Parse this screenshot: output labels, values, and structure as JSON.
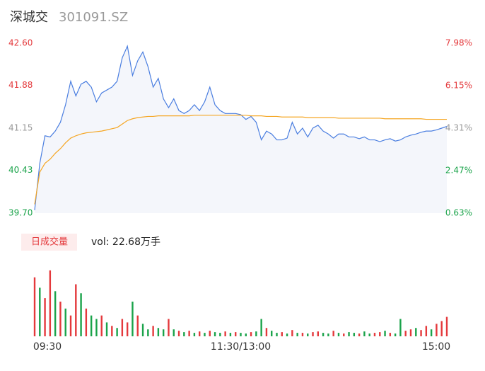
{
  "header": {
    "name": "深城交",
    "code": "301091.SZ"
  },
  "chart_data": [
    {
      "type": "line",
      "x": [
        0,
        1,
        2,
        3,
        4,
        5,
        6,
        7,
        8,
        9,
        10,
        11,
        12,
        13,
        14,
        15,
        16,
        17,
        18,
        19,
        20,
        21,
        22,
        23,
        24,
        25,
        26,
        27,
        28,
        29,
        30,
        31,
        32,
        33,
        34,
        35,
        36,
        37,
        38,
        39,
        40,
        41,
        42,
        43,
        44,
        45,
        46,
        47,
        48,
        49,
        50,
        51,
        52,
        53,
        54,
        55,
        56,
        57,
        58,
        59,
        60,
        61,
        62,
        63,
        64,
        65,
        66,
        67,
        68,
        69,
        70,
        71,
        72,
        73,
        74,
        75,
        76,
        77,
        78,
        79,
        80
      ],
      "series": [
        {
          "color": "#4a7ee0",
          "values": [
            39.75,
            40.55,
            41.02,
            41.0,
            41.1,
            41.25,
            41.55,
            41.95,
            41.7,
            41.9,
            41.95,
            41.85,
            41.6,
            41.75,
            41.8,
            41.85,
            41.95,
            42.35,
            42.55,
            42.05,
            42.3,
            42.45,
            42.2,
            41.85,
            42.0,
            41.65,
            41.5,
            41.65,
            41.45,
            41.4,
            41.45,
            41.55,
            41.45,
            41.6,
            41.85,
            41.55,
            41.45,
            41.4,
            41.4,
            41.4,
            41.38,
            41.3,
            41.35,
            41.25,
            40.95,
            41.1,
            41.05,
            40.95,
            40.95,
            40.98,
            41.25,
            41.05,
            41.15,
            41.0,
            41.15,
            41.2,
            41.1,
            41.05,
            40.98,
            41.05,
            41.05,
            41.0,
            41.0,
            40.97,
            41.0,
            40.95,
            40.95,
            40.92,
            40.95,
            40.97,
            40.93,
            40.95,
            41.0,
            41.03,
            41.05,
            41.08,
            41.1,
            41.1,
            41.12,
            41.15,
            41.18
          ]
        },
        {
          "color": "#f5a623",
          "values": [
            39.85,
            40.4,
            40.55,
            40.62,
            40.72,
            40.8,
            40.9,
            40.98,
            41.02,
            41.05,
            41.07,
            41.08,
            41.09,
            41.1,
            41.12,
            41.14,
            41.16,
            41.22,
            41.28,
            41.31,
            41.33,
            41.34,
            41.35,
            41.35,
            41.36,
            41.36,
            41.36,
            41.36,
            41.36,
            41.36,
            41.36,
            41.37,
            41.37,
            41.37,
            41.37,
            41.37,
            41.37,
            41.37,
            41.37,
            41.37,
            41.37,
            41.37,
            41.36,
            41.36,
            41.36,
            41.35,
            41.35,
            41.35,
            41.34,
            41.34,
            41.34,
            41.34,
            41.34,
            41.33,
            41.33,
            41.33,
            41.33,
            41.33,
            41.33,
            41.32,
            41.32,
            41.32,
            41.32,
            41.32,
            41.32,
            41.32,
            41.32,
            41.32,
            41.31,
            41.31,
            41.31,
            41.31,
            41.31,
            41.31,
            41.31,
            41.31,
            41.3,
            41.3,
            41.3,
            41.3,
            41.3
          ]
        }
      ],
      "xlim": [
        0,
        80
      ],
      "xticks": [
        {
          "value": 0,
          "label": "09:30"
        },
        {
          "value": 40,
          "label": "11:30/13:00"
        },
        {
          "value": 80,
          "label": "15:00"
        }
      ],
      "ylim": [
        39.7,
        42.6
      ],
      "yticks": [
        42.6,
        41.88,
        41.15,
        40.43,
        39.7
      ],
      "ytick_labels": [
        "42.60",
        "41.88",
        "41.15",
        "40.43",
        "39.70"
      ],
      "y2lim": [
        0.63,
        7.98
      ],
      "y2ticks": [
        {
          "value": 7.98,
          "label": "7.98%"
        },
        {
          "value": 6.15,
          "label": "6.15%"
        },
        {
          "value": 4.31,
          "label": "4.31%"
        },
        {
          "value": 2.47,
          "label": "2.47%"
        },
        {
          "value": 0.63,
          "label": "0.63%"
        }
      ],
      "tick_colors": [
        "#e4393c",
        "#e4393c",
        "#999999",
        "#1aa34a",
        "#1aa34a"
      ],
      "area_color": "#f4f6fb"
    },
    {
      "type": "bar",
      "button": "日成交量",
      "vol_label": "vol: 22.68万手",
      "values": [
        85,
        70,
        55,
        95,
        65,
        50,
        40,
        30,
        75,
        62,
        40,
        30,
        25,
        30,
        20,
        15,
        12,
        25,
        20,
        50,
        30,
        18,
        10,
        15,
        12,
        10,
        25,
        10,
        8,
        6,
        8,
        5,
        7,
        5,
        8,
        6,
        5,
        7,
        5,
        6,
        5,
        4,
        6,
        7,
        25,
        12,
        8,
        5,
        6,
        4,
        9,
        5,
        5,
        4,
        6,
        7,
        5,
        4,
        8,
        5,
        4,
        6,
        5,
        4,
        7,
        4,
        5,
        6,
        8,
        5,
        4,
        25,
        8,
        10,
        12,
        9,
        15,
        10,
        18,
        22,
        28
      ],
      "volume_up": [
        true,
        false,
        true,
        true,
        false,
        true,
        false,
        true,
        true,
        false,
        true,
        false,
        false,
        true,
        false,
        true,
        false,
        true,
        true,
        false,
        true,
        false,
        false,
        true,
        false,
        false,
        true,
        false,
        true,
        false,
        true,
        false,
        true,
        false,
        true,
        false,
        false,
        true,
        false,
        true,
        false,
        false,
        true,
        false,
        false,
        true,
        false,
        false,
        true,
        false,
        true,
        false,
        true,
        false,
        true,
        true,
        false,
        false,
        true,
        false,
        true,
        false,
        false,
        true,
        false,
        false,
        true,
        true,
        false,
        true,
        false,
        false,
        true,
        true,
        false,
        true,
        true,
        false,
        true,
        true,
        true
      ],
      "up_color": "#e4393c",
      "down_color": "#1aa34a",
      "ylim": [
        0,
        100
      ]
    }
  ]
}
